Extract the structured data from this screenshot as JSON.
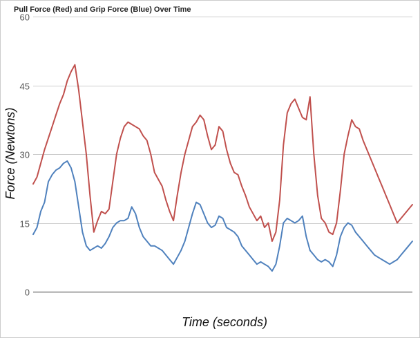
{
  "chart_data": {
    "type": "line",
    "title": "Pull Force (Red) and Grip Force (Blue) Over Time",
    "xlabel": "Time (seconds)",
    "ylabel": "Force (Newtons)",
    "ylim": [
      0,
      60
    ],
    "yticks": [
      "0",
      "15",
      "30",
      "45",
      "60"
    ],
    "ytick_values": [
      0,
      15,
      30,
      45,
      60
    ],
    "grid": true,
    "legend": "none",
    "x": [
      0,
      1,
      2,
      3,
      4,
      5,
      6,
      7,
      8,
      9,
      10,
      11,
      12,
      13,
      14,
      15,
      16,
      17,
      18,
      19,
      20,
      21,
      22,
      23,
      24,
      25,
      26,
      27,
      28,
      29,
      30,
      31,
      32,
      33,
      34,
      35,
      36,
      37,
      38,
      39,
      40,
      41,
      42,
      43,
      44,
      45,
      46,
      47,
      48,
      49,
      50,
      51,
      52,
      53,
      54,
      55,
      56,
      57,
      58,
      59,
      60,
      61,
      62,
      63,
      64,
      65,
      66,
      67,
      68,
      69,
      70,
      71,
      72,
      73,
      74,
      75,
      76,
      77,
      78,
      79,
      80,
      81,
      82,
      83,
      84,
      85,
      86,
      87,
      88,
      89,
      90,
      91,
      92,
      93,
      94,
      95,
      96,
      97,
      98,
      99,
      100
    ],
    "series": [
      {
        "color": "#c0504d",
        "values": [
          23.5,
          25,
          28,
          31,
          33.5,
          36,
          38.5,
          41,
          43,
          46,
          48,
          49.5,
          44,
          37,
          30,
          21,
          13,
          15.5,
          17.5,
          17,
          18,
          24,
          30,
          33.5,
          36,
          37,
          36.5,
          36,
          35.5,
          34,
          33,
          30,
          26,
          24.5,
          23,
          20,
          17.5,
          15.5,
          21,
          26,
          30,
          33,
          36,
          37,
          38.5,
          37.5,
          34,
          31,
          32,
          36,
          35,
          31,
          28,
          26,
          25.5,
          23,
          21,
          18.5,
          17,
          15.5,
          16.5,
          14,
          15,
          11,
          13,
          20,
          32,
          39,
          41,
          42,
          40,
          38,
          37.5,
          42.5,
          30,
          21,
          16,
          15,
          13,
          12.5,
          15,
          22,
          30,
          34,
          37.5,
          36,
          35.5,
          33,
          31,
          29,
          27,
          25,
          23,
          21,
          19,
          17,
          15,
          16,
          17,
          18,
          19
        ]
      },
      {
        "color": "#4f81bd",
        "values": [
          12.5,
          14,
          17.5,
          19.5,
          24,
          25.5,
          26.5,
          27,
          28,
          28.5,
          27,
          24,
          18.5,
          13,
          10,
          9,
          9.5,
          10,
          9.5,
          10.5,
          12,
          14,
          15,
          15.5,
          15.5,
          16,
          18.5,
          17,
          14,
          12,
          11,
          10,
          10,
          9.5,
          9,
          8,
          7,
          6,
          7.5,
          9,
          11,
          14,
          17,
          19.5,
          19,
          17,
          15,
          14,
          14.5,
          16.5,
          16,
          14,
          13.5,
          13,
          12,
          10,
          9,
          8,
          7,
          6,
          6.5,
          6,
          5.5,
          4.5,
          6,
          10,
          15,
          16,
          15.5,
          15,
          15.5,
          16.5,
          12,
          9,
          8,
          7,
          6.5,
          7,
          6.5,
          5.5,
          8,
          12,
          14,
          15,
          14.5,
          13,
          12,
          11,
          10,
          9,
          8,
          7.5,
          7,
          6.5,
          6,
          6.5,
          7,
          8,
          9,
          10,
          11
        ]
      }
    ]
  }
}
